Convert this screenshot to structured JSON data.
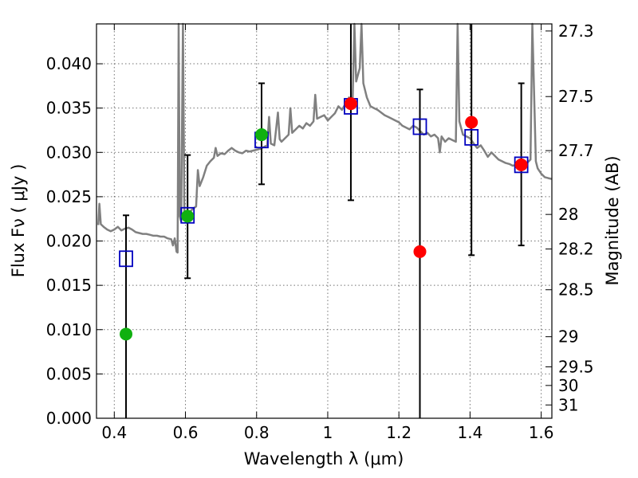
{
  "chart_data": {
    "type": "scatter",
    "title": "",
    "xlabel": "Wavelength  λ (μm)",
    "ylabel": "Flux  Fν  ( μJy )",
    "y2label": "Magnitude (AB)",
    "xlim": [
      0.35,
      1.63
    ],
    "ylim": [
      0.0,
      0.0445
    ],
    "grid": true,
    "legend": "none",
    "x_ticks": [
      {
        "value": 0.4,
        "label": "0.4"
      },
      {
        "value": 0.6,
        "label": "0.6"
      },
      {
        "value": 0.8,
        "label": "0.8"
      },
      {
        "value": 1.0,
        "label": "1"
      },
      {
        "value": 1.2,
        "label": "1.2"
      },
      {
        "value": 1.4,
        "label": "1.4"
      },
      {
        "value": 1.6,
        "label": "1.6"
      }
    ],
    "y_ticks": [
      {
        "value": 0.0,
        "label": "0.000"
      },
      {
        "value": 0.005,
        "label": "0.005"
      },
      {
        "value": 0.01,
        "label": "0.010"
      },
      {
        "value": 0.015,
        "label": "0.015"
      },
      {
        "value": 0.02,
        "label": "0.020"
      },
      {
        "value": 0.025,
        "label": "0.025"
      },
      {
        "value": 0.03,
        "label": "0.030"
      },
      {
        "value": 0.035,
        "label": "0.035"
      },
      {
        "value": 0.04,
        "label": "0.040"
      }
    ],
    "mag_ticks": [
      {
        "flux": 0.0437,
        "label": "27.3"
      },
      {
        "flux": 0.0363,
        "label": "27.5"
      },
      {
        "flux": 0.0302,
        "label": "27.7"
      },
      {
        "flux": 0.023,
        "label": "28"
      },
      {
        "flux": 0.0191,
        "label": "28.2"
      },
      {
        "flux": 0.0145,
        "label": "28.5"
      },
      {
        "flux": 0.0092,
        "label": "29"
      },
      {
        "flux": 0.0058,
        "label": "29.5"
      },
      {
        "flux": 0.0037,
        "label": "30"
      },
      {
        "flux": 0.0015,
        "label": "31"
      }
    ],
    "colors": {
      "spectrum": "#808080",
      "model_squares": "#0000bf",
      "green_points": "#10b010",
      "red_points": "#ff0000",
      "errorbars": "#000000"
    },
    "spectrum": [
      [
        0.355,
        0.0218
      ],
      [
        0.358,
        0.0242
      ],
      [
        0.362,
        0.0219
      ],
      [
        0.37,
        0.0216
      ],
      [
        0.38,
        0.0213
      ],
      [
        0.39,
        0.0211
      ],
      [
        0.4,
        0.0213
      ],
      [
        0.41,
        0.0216
      ],
      [
        0.42,
        0.0212
      ],
      [
        0.43,
        0.0214
      ],
      [
        0.44,
        0.0215
      ],
      [
        0.45,
        0.0213
      ],
      [
        0.46,
        0.021
      ],
      [
        0.47,
        0.0209
      ],
      [
        0.48,
        0.0208
      ],
      [
        0.49,
        0.0208
      ],
      [
        0.5,
        0.0207
      ],
      [
        0.51,
        0.0206
      ],
      [
        0.52,
        0.0206
      ],
      [
        0.53,
        0.0205
      ],
      [
        0.54,
        0.0205
      ],
      [
        0.55,
        0.0203
      ],
      [
        0.56,
        0.0202
      ],
      [
        0.565,
        0.0195
      ],
      [
        0.57,
        0.0203
      ],
      [
        0.575,
        0.0188
      ],
      [
        0.578,
        0.0187
      ],
      [
        0.581,
        0.0445
      ],
      [
        0.584,
        0.0228
      ],
      [
        0.588,
        0.0222
      ],
      [
        0.593,
        0.0445
      ],
      [
        0.597,
        0.0232
      ],
      [
        0.6,
        0.0227
      ],
      [
        0.61,
        0.0232
      ],
      [
        0.62,
        0.0236
      ],
      [
        0.63,
        0.0239
      ],
      [
        0.635,
        0.028
      ],
      [
        0.64,
        0.0262
      ],
      [
        0.65,
        0.0272
      ],
      [
        0.66,
        0.0285
      ],
      [
        0.67,
        0.029
      ],
      [
        0.68,
        0.0294
      ],
      [
        0.685,
        0.0305
      ],
      [
        0.69,
        0.0296
      ],
      [
        0.7,
        0.0299
      ],
      [
        0.71,
        0.0298
      ],
      [
        0.72,
        0.0302
      ],
      [
        0.73,
        0.0305
      ],
      [
        0.74,
        0.0302
      ],
      [
        0.75,
        0.03
      ],
      [
        0.76,
        0.0299
      ],
      [
        0.77,
        0.0302
      ],
      [
        0.78,
        0.0301
      ],
      [
        0.79,
        0.0302
      ],
      [
        0.8,
        0.0303
      ],
      [
        0.81,
        0.0304
      ],
      [
        0.82,
        0.0306
      ],
      [
        0.83,
        0.0308
      ],
      [
        0.835,
        0.034
      ],
      [
        0.84,
        0.031
      ],
      [
        0.85,
        0.0308
      ],
      [
        0.86,
        0.0345
      ],
      [
        0.865,
        0.0315
      ],
      [
        0.87,
        0.0312
      ],
      [
        0.88,
        0.0316
      ],
      [
        0.89,
        0.032
      ],
      [
        0.895,
        0.035
      ],
      [
        0.9,
        0.0322
      ],
      [
        0.91,
        0.0326
      ],
      [
        0.92,
        0.033
      ],
      [
        0.93,
        0.0327
      ],
      [
        0.94,
        0.0333
      ],
      [
        0.95,
        0.033
      ],
      [
        0.96,
        0.0335
      ],
      [
        0.965,
        0.0365
      ],
      [
        0.97,
        0.0338
      ],
      [
        0.98,
        0.034
      ],
      [
        0.99,
        0.0342
      ],
      [
        1.0,
        0.0336
      ],
      [
        1.01,
        0.034
      ],
      [
        1.02,
        0.0344
      ],
      [
        1.03,
        0.0352
      ],
      [
        1.04,
        0.0348
      ],
      [
        1.05,
        0.0355
      ],
      [
        1.06,
        0.0362
      ],
      [
        1.065,
        0.0358
      ],
      [
        1.07,
        0.036
      ],
      [
        1.075,
        0.0445
      ],
      [
        1.08,
        0.038
      ],
      [
        1.09,
        0.0395
      ],
      [
        1.095,
        0.0445
      ],
      [
        1.1,
        0.0378
      ],
      [
        1.11,
        0.0362
      ],
      [
        1.12,
        0.0352
      ],
      [
        1.13,
        0.035
      ],
      [
        1.14,
        0.0348
      ],
      [
        1.15,
        0.0345
      ],
      [
        1.16,
        0.0342
      ],
      [
        1.17,
        0.034
      ],
      [
        1.18,
        0.0338
      ],
      [
        1.19,
        0.0336
      ],
      [
        1.2,
        0.0334
      ],
      [
        1.21,
        0.033
      ],
      [
        1.22,
        0.0328
      ],
      [
        1.23,
        0.0326
      ],
      [
        1.24,
        0.033
      ],
      [
        1.25,
        0.0328
      ],
      [
        1.26,
        0.0324
      ],
      [
        1.27,
        0.032
      ],
      [
        1.28,
        0.0322
      ],
      [
        1.29,
        0.0318
      ],
      [
        1.3,
        0.032
      ],
      [
        1.31,
        0.0316
      ],
      [
        1.315,
        0.03
      ],
      [
        1.32,
        0.0318
      ],
      [
        1.33,
        0.0312
      ],
      [
        1.34,
        0.0316
      ],
      [
        1.35,
        0.0314
      ],
      [
        1.36,
        0.0312
      ],
      [
        1.365,
        0.0445
      ],
      [
        1.37,
        0.0335
      ],
      [
        1.38,
        0.032
      ],
      [
        1.39,
        0.0318
      ],
      [
        1.4,
        0.0316
      ],
      [
        1.41,
        0.031
      ],
      [
        1.42,
        0.0305
      ],
      [
        1.43,
        0.0308
      ],
      [
        1.44,
        0.0302
      ],
      [
        1.45,
        0.0295
      ],
      [
        1.46,
        0.03
      ],
      [
        1.47,
        0.0296
      ],
      [
        1.48,
        0.0292
      ],
      [
        1.49,
        0.029
      ],
      [
        1.5,
        0.0288
      ],
      [
        1.51,
        0.0287
      ],
      [
        1.52,
        0.0285
      ],
      [
        1.53,
        0.0286
      ],
      [
        1.54,
        0.0287
      ],
      [
        1.55,
        0.029
      ],
      [
        1.56,
        0.0288
      ],
      [
        1.57,
        0.0292
      ],
      [
        1.575,
        0.0445
      ],
      [
        1.585,
        0.029
      ],
      [
        1.59,
        0.0282
      ],
      [
        1.6,
        0.0276
      ],
      [
        1.61,
        0.0272
      ],
      [
        1.62,
        0.0271
      ],
      [
        1.63,
        0.027
      ]
    ],
    "model_squares": [
      {
        "x": 0.433,
        "y": 0.018
      },
      {
        "x": 0.606,
        "y": 0.0229
      },
      {
        "x": 0.814,
        "y": 0.0314
      },
      {
        "x": 1.065,
        "y": 0.0352
      },
      {
        "x": 1.259,
        "y": 0.0329
      },
      {
        "x": 1.404,
        "y": 0.0317
      },
      {
        "x": 1.544,
        "y": 0.0286
      }
    ],
    "errorbars": [
      {
        "x": 0.433,
        "low": 0.0,
        "high": 0.0229
      },
      {
        "x": 0.606,
        "low": 0.0158,
        "high": 0.0297
      },
      {
        "x": 0.814,
        "low": 0.0264,
        "high": 0.0378
      },
      {
        "x": 1.065,
        "low": 0.0246,
        "high": 0.0445
      },
      {
        "x": 1.259,
        "low": 0.0,
        "high": 0.0371
      },
      {
        "x": 1.404,
        "low": 0.0184,
        "high": 0.0445
      },
      {
        "x": 1.544,
        "low": 0.0195,
        "high": 0.0378
      }
    ],
    "green_points": [
      {
        "x": 0.433,
        "y": 0.0095
      },
      {
        "x": 0.606,
        "y": 0.0228
      },
      {
        "x": 0.814,
        "y": 0.032
      }
    ],
    "red_points": [
      {
        "x": 1.065,
        "y": 0.0355
      },
      {
        "x": 1.259,
        "y": 0.0188
      },
      {
        "x": 1.404,
        "y": 0.0334
      },
      {
        "x": 1.544,
        "y": 0.0286
      }
    ]
  }
}
